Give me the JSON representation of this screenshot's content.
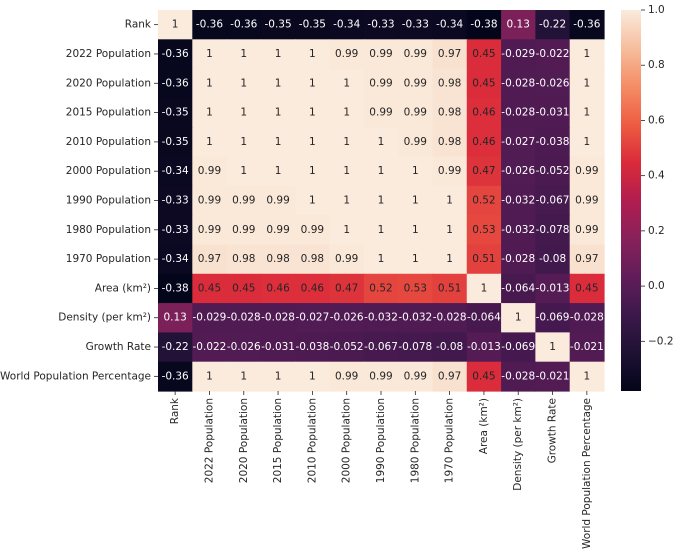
{
  "chart_data": {
    "type": "heatmap",
    "title": "",
    "xlabel": "",
    "ylabel": "",
    "row_labels": [
      "Rank",
      "2022 Population",
      "2020 Population",
      "2015 Population",
      "2010 Population",
      "2000 Population",
      "1990 Population",
      "1980 Population",
      "1970 Population",
      "Area (km²)",
      "Density (per km²)",
      "Growth Rate",
      "World Population Percentage"
    ],
    "col_labels": [
      "Rank",
      "2022 Population",
      "2020 Population",
      "2015 Population",
      "2010 Population",
      "2000 Population",
      "1990 Population",
      "1980 Population",
      "1970 Population",
      "Area (km²)",
      "Density (per km²)",
      "Growth Rate",
      "World Population Percentage"
    ],
    "values": [
      [
        1,
        -0.36,
        -0.36,
        -0.35,
        -0.35,
        -0.34,
        -0.33,
        -0.33,
        -0.34,
        -0.38,
        0.13,
        -0.22,
        -0.36
      ],
      [
        -0.36,
        1,
        1,
        1,
        1,
        0.99,
        0.99,
        0.99,
        0.97,
        0.45,
        -0.029,
        -0.022,
        1
      ],
      [
        -0.36,
        1,
        1,
        1,
        1,
        1,
        0.99,
        0.99,
        0.98,
        0.45,
        -0.028,
        -0.026,
        1
      ],
      [
        -0.35,
        1,
        1,
        1,
        1,
        1,
        0.99,
        0.99,
        0.98,
        0.46,
        -0.028,
        -0.031,
        1
      ],
      [
        -0.35,
        1,
        1,
        1,
        1,
        1,
        1,
        0.99,
        0.98,
        0.46,
        -0.027,
        -0.038,
        1
      ],
      [
        -0.34,
        0.99,
        1,
        1,
        1,
        1,
        1,
        1,
        0.99,
        0.47,
        -0.026,
        -0.052,
        0.99
      ],
      [
        -0.33,
        0.99,
        0.99,
        0.99,
        1,
        1,
        1,
        1,
        1,
        0.52,
        -0.032,
        -0.067,
        0.99
      ],
      [
        -0.33,
        0.99,
        0.99,
        0.99,
        0.99,
        1,
        1,
        1,
        1,
        0.53,
        -0.032,
        -0.078,
        0.99
      ],
      [
        -0.34,
        0.97,
        0.98,
        0.98,
        0.98,
        0.99,
        1,
        1,
        1,
        0.51,
        -0.028,
        -0.08,
        0.97
      ],
      [
        -0.38,
        0.45,
        0.45,
        0.46,
        0.46,
        0.47,
        0.52,
        0.53,
        0.51,
        1,
        -0.064,
        -0.013,
        0.45
      ],
      [
        0.13,
        -0.029,
        -0.028,
        -0.028,
        -0.027,
        -0.026,
        -0.032,
        -0.032,
        -0.028,
        -0.064,
        1,
        -0.069,
        -0.028
      ],
      [
        -0.22,
        -0.022,
        -0.026,
        -0.031,
        -0.038,
        -0.052,
        -0.067,
        -0.078,
        -0.08,
        -0.013,
        -0.069,
        1,
        -0.021
      ],
      [
        -0.36,
        1,
        1,
        1,
        1,
        0.99,
        0.99,
        0.99,
        0.97,
        0.45,
        -0.028,
        -0.021,
        1
      ]
    ],
    "value_labels": [
      [
        "1",
        "-0.36",
        "-0.36",
        "-0.35",
        "-0.35",
        "-0.34",
        "-0.33",
        "-0.33",
        "-0.34",
        "-0.38",
        "0.13",
        "-0.22",
        "-0.36"
      ],
      [
        "-0.36",
        "1",
        "1",
        "1",
        "1",
        "0.99",
        "0.99",
        "0.99",
        "0.97",
        "0.45",
        "-0.029",
        "-0.022",
        "1"
      ],
      [
        "-0.36",
        "1",
        "1",
        "1",
        "1",
        "1",
        "0.99",
        "0.99",
        "0.98",
        "0.45",
        "-0.028",
        "-0.026",
        "1"
      ],
      [
        "-0.35",
        "1",
        "1",
        "1",
        "1",
        "1",
        "0.99",
        "0.99",
        "0.98",
        "0.46",
        "-0.028",
        "-0.031",
        "1"
      ],
      [
        "-0.35",
        "1",
        "1",
        "1",
        "1",
        "1",
        "1",
        "0.99",
        "0.98",
        "0.46",
        "-0.027",
        "-0.038",
        "1"
      ],
      [
        "-0.34",
        "0.99",
        "1",
        "1",
        "1",
        "1",
        "1",
        "1",
        "0.99",
        "0.47",
        "-0.026",
        "-0.052",
        "0.99"
      ],
      [
        "-0.33",
        "0.99",
        "0.99",
        "0.99",
        "1",
        "1",
        "1",
        "1",
        "1",
        "0.52",
        "-0.032",
        "-0.067",
        "0.99"
      ],
      [
        "-0.33",
        "0.99",
        "0.99",
        "0.99",
        "0.99",
        "1",
        "1",
        "1",
        "1",
        "0.53",
        "-0.032",
        "-0.078",
        "0.99"
      ],
      [
        "-0.34",
        "0.97",
        "0.98",
        "0.98",
        "0.98",
        "0.99",
        "1",
        "1",
        "1",
        "0.51",
        "-0.028",
        "-0.08",
        "0.97"
      ],
      [
        "-0.38",
        "0.45",
        "0.45",
        "0.46",
        "0.46",
        "0.47",
        "0.52",
        "0.53",
        "0.51",
        "1",
        "-0.064",
        "-0.013",
        "0.45"
      ],
      [
        "0.13",
        "-0.029",
        "-0.028",
        "-0.028",
        "-0.027",
        "-0.026",
        "-0.032",
        "-0.032",
        "-0.028",
        "-0.064",
        "1",
        "-0.069",
        "-0.028"
      ],
      [
        "-0.22",
        "-0.022",
        "-0.026",
        "-0.031",
        "-0.038",
        "-0.052",
        "-0.067",
        "-0.078",
        "-0.08",
        "-0.013",
        "-0.069",
        "1",
        "-0.021"
      ],
      [
        "-0.36",
        "1",
        "1",
        "1",
        "1",
        "0.99",
        "0.99",
        "0.99",
        "0.97",
        "0.45",
        "-0.028",
        "-0.021",
        "1"
      ]
    ],
    "colormap": "rocket",
    "color_range": [
      -0.38,
      1
    ],
    "colorbar": {
      "ticks": [
        1.0,
        0.8,
        0.6,
        0.4,
        0.2,
        0.0,
        -0.2
      ],
      "tick_labels": [
        "1.0",
        "0.8",
        "0.6",
        "0.4",
        "0.2",
        "0.0",
        "−0.2"
      ]
    },
    "grid": false,
    "legend": "colorbar-right"
  }
}
